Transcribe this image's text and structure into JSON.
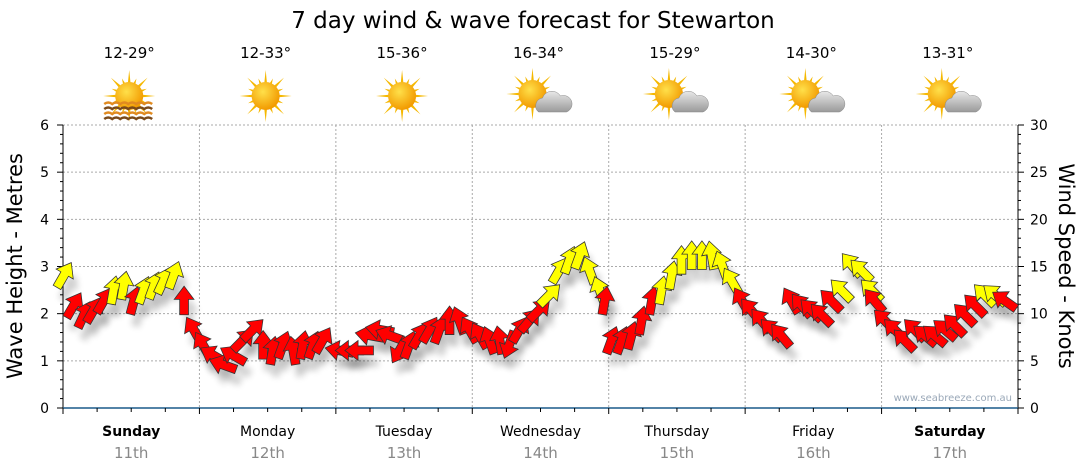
{
  "chart_data": {
    "type": "scatter",
    "title": "7 day wind & wave forecast for Stewarton",
    "ylabel_left": "Wave Height - Metres",
    "ylabel_right": "Wind Speed - Knots",
    "ylim_left": [
      0,
      6
    ],
    "ylim_right": [
      0,
      30
    ],
    "yticks_left": [
      "0",
      "1",
      "2",
      "3",
      "4",
      "5",
      "6"
    ],
    "yticks_right": [
      "0",
      "5",
      "10",
      "15",
      "20",
      "25",
      "30"
    ],
    "grid": true,
    "watermark": "www.seabreeze.com.au",
    "days": [
      {
        "name": "Sunday",
        "date": "11th",
        "temp": "12-29°",
        "icon": "sun-haze",
        "bold": true
      },
      {
        "name": "Monday",
        "date": "12th",
        "temp": "12-33°",
        "icon": "sun",
        "bold": false
      },
      {
        "name": "Tuesday",
        "date": "13th",
        "temp": "15-36°",
        "icon": "sun",
        "bold": false
      },
      {
        "name": "Wednesday",
        "date": "14th",
        "temp": "16-34°",
        "icon": "partly-cloudy",
        "bold": false
      },
      {
        "name": "Thursday",
        "date": "15th",
        "temp": "15-29°",
        "icon": "partly-cloudy",
        "bold": false
      },
      {
        "name": "Friday",
        "date": "16th",
        "temp": "14-30°",
        "icon": "partly-cloudy",
        "bold": false
      },
      {
        "name": "Saturday",
        "date": "17th",
        "temp": "13-31°",
        "icon": "partly-cloudy",
        "bold": true
      }
    ],
    "colors": {
      "strong": "#ffff00",
      "light": "#ff0000",
      "outline": "#333333",
      "axis": "#1a5a8a"
    },
    "wind_series": {
      "name": "Wind (knots, arrow heading deg)",
      "hours_from_start": [
        0.2,
        1.9,
        3.7,
        5.4,
        7.2,
        8.9,
        10.7,
        12.5,
        14.2,
        16,
        17.7,
        19.5,
        21.3,
        23,
        24.6,
        26.4,
        28.1,
        29.9,
        31.7,
        33.4,
        35.2,
        36.9,
        38.7,
        40.5,
        42.2,
        44,
        45.7,
        48.6,
        50.4,
        52.1,
        53.9,
        55.7,
        57.4,
        59.2,
        60.9,
        62.7,
        64.5,
        66.2,
        68,
        69.7,
        71.5,
        73.3,
        75,
        76.8,
        78.5,
        80.3,
        82.1,
        83.8,
        85.6,
        87.3,
        89.1,
        90.9,
        92.6,
        94.4,
        95.3,
        96.5,
        98.3,
        100,
        101.8,
        103.6,
        105.3,
        107.1,
        108.8,
        110.6,
        112.4,
        114.1,
        115.9,
        117.6,
        119.4,
        121,
        122.8,
        124.6,
        126.3,
        128.1,
        129.9,
        131.6,
        133.4,
        135.1,
        136.9,
        138.7,
        140.4,
        142.2,
        142.7,
        144.5,
        146.3,
        148,
        149.8,
        151.6,
        153.3,
        155.1,
        156.8,
        158.6,
        160.4,
        162.1,
        163.9,
        165.6
      ],
      "knots": [
        14.1,
        10.9,
        9.9,
        10.4,
        11.4,
        12.5,
        13,
        11.4,
        12.5,
        13,
        13.5,
        14.1,
        11.4,
        8.3,
        6.7,
        5.6,
        4.6,
        5.6,
        7.2,
        8.3,
        6.7,
        6.1,
        6.7,
        6.1,
        6.7,
        6.7,
        7.2,
        6.1,
        6.1,
        6.1,
        7.7,
        8.3,
        7.7,
        6.1,
        6.7,
        7.7,
        8.3,
        8.3,
        9.3,
        9.3,
        8.3,
        7.7,
        7.2,
        7.2,
        6.7,
        8.3,
        9.3,
        10.4,
        12,
        14.6,
        15.7,
        16.2,
        14.6,
        12.5,
        11.4,
        7.2,
        7.2,
        7.7,
        9.3,
        11.4,
        12.5,
        14.1,
        15.7,
        16.2,
        16.2,
        16.2,
        15.2,
        13.5,
        11.4,
        10.4,
        9.3,
        8.3,
        7.7,
        11.4,
        10.9,
        10.4,
        9.9,
        11.4,
        12.5,
        15.2,
        14.6,
        12.5,
        11.4,
        9.3,
        8.3,
        7.2,
        8.3,
        7.7,
        7.7,
        8.3,
        8.8,
        9.9,
        10.9,
        12,
        12,
        11.4
      ],
      "heading_deg": [
        30,
        30,
        25,
        30,
        30,
        10,
        10,
        15,
        20,
        20,
        25,
        20,
        0,
        -30,
        -30,
        -60,
        -70,
        -60,
        45,
        45,
        0,
        10,
        20,
        -10,
        10,
        20,
        30,
        -80,
        -90,
        -90,
        -80,
        -80,
        -70,
        -150,
        20,
        30,
        30,
        20,
        0,
        -20,
        -30,
        -30,
        -20,
        -10,
        -160,
        30,
        40,
        45,
        45,
        30,
        20,
        20,
        -20,
        -20,
        10,
        20,
        20,
        15,
        10,
        10,
        10,
        10,
        0,
        0,
        0,
        -10,
        -20,
        -30,
        -30,
        -40,
        -40,
        -45,
        -40,
        -30,
        -40,
        -45,
        -45,
        -45,
        -45,
        -40,
        -45,
        -45,
        -40,
        -45,
        -45,
        -45,
        -45,
        -50,
        -50,
        -50,
        -45,
        -45,
        -45,
        -45,
        -50,
        -55
      ]
    }
  }
}
